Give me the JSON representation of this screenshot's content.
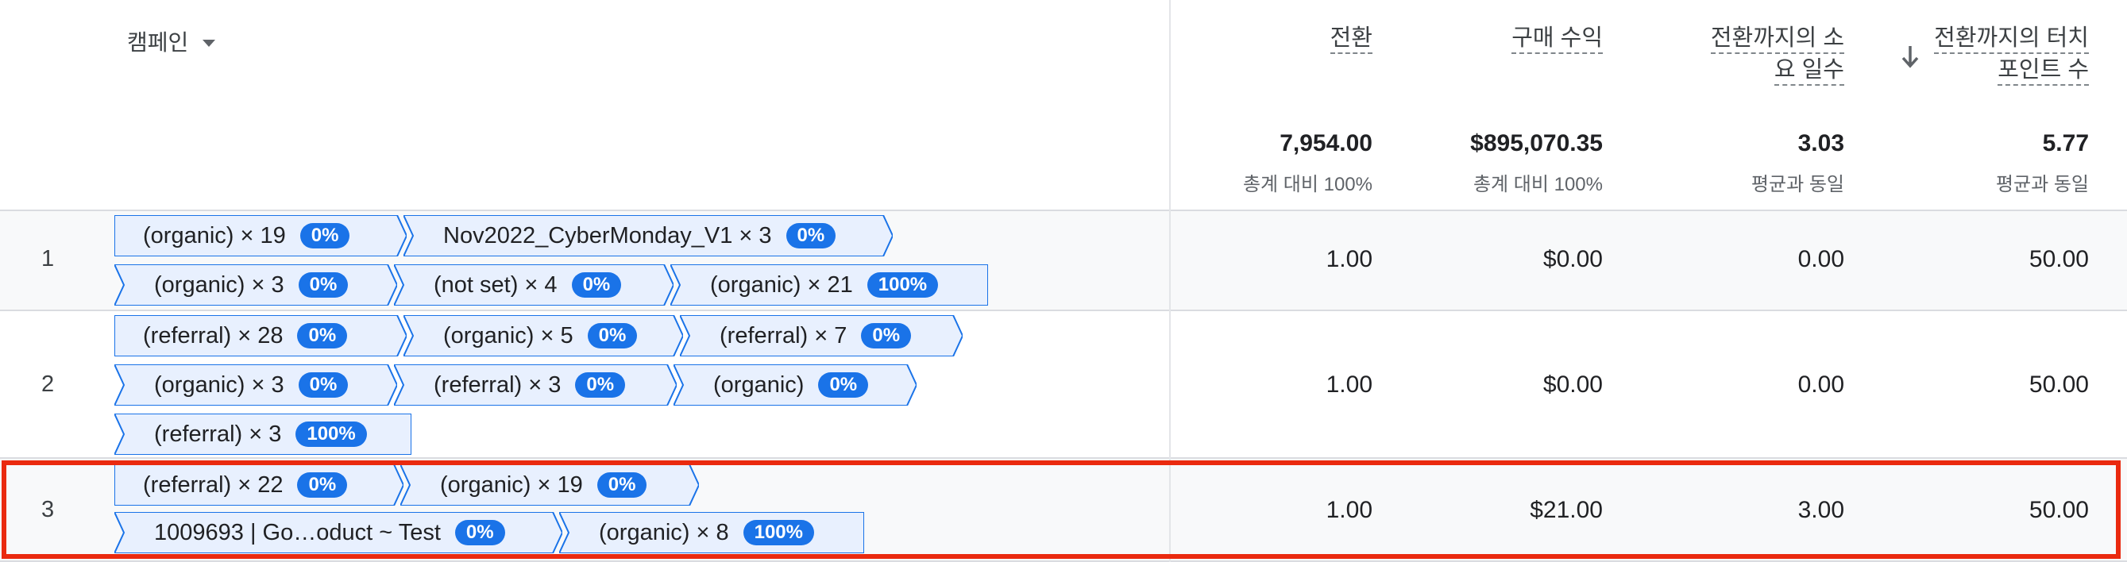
{
  "header": {
    "campaign_label": "캠페인",
    "columns": [
      {
        "line1": "전환",
        "line2": ""
      },
      {
        "line1": "구매 수익",
        "line2": ""
      },
      {
        "line1": "전환까지의 소",
        "line2": "요 일수"
      },
      {
        "line1": "전환까지의 터치",
        "line2": "포인트 수"
      }
    ],
    "totals": [
      {
        "value": "7,954.00",
        "sub": "총계 대비 100%"
      },
      {
        "value": "$895,070.35",
        "sub": "총계 대비 100%"
      },
      {
        "value": "3.03",
        "sub": "평균과 동일"
      },
      {
        "value": "5.77",
        "sub": "평균과 동일"
      }
    ]
  },
  "rows": [
    {
      "num": "1",
      "paths": [
        {
          "label": "(organic) × 19",
          "pct": "0%"
        },
        {
          "label": "Nov2022_CyberMonday_V1 × 3",
          "pct": "0%"
        },
        {
          "label": "(organic) × 3",
          "pct": "0%"
        },
        {
          "label": "(not set) × 4",
          "pct": "0%"
        },
        {
          "label": "(organic) × 21",
          "pct": "100%"
        }
      ],
      "values": [
        "1.00",
        "$0.00",
        "0.00",
        "50.00"
      ]
    },
    {
      "num": "2",
      "paths": [
        {
          "label": "(referral) × 28",
          "pct": "0%"
        },
        {
          "label": "(organic) × 5",
          "pct": "0%"
        },
        {
          "label": "(referral) × 7",
          "pct": "0%"
        },
        {
          "label": "(organic) × 3",
          "pct": "0%"
        },
        {
          "label": "(referral) × 3",
          "pct": "0%"
        },
        {
          "label": "(organic)",
          "pct": "0%"
        },
        {
          "label": "(referral) × 3",
          "pct": "100%"
        }
      ],
      "values": [
        "1.00",
        "$0.00",
        "0.00",
        "50.00"
      ]
    },
    {
      "num": "3",
      "paths": [
        {
          "label": "(referral) × 22",
          "pct": "0%"
        },
        {
          "label": "(organic) × 19",
          "pct": "0%"
        },
        {
          "label": "1009693 | Go…oduct ~ Test",
          "pct": "0%"
        },
        {
          "label": "(organic) × 8",
          "pct": "100%"
        }
      ],
      "values": [
        "1.00",
        "$21.00",
        "3.00",
        "50.00"
      ]
    }
  ],
  "colors": {
    "chip_fill": "#e8f0fe",
    "chip_border": "#1a73e8",
    "pct_badge": "#1a73e8",
    "highlight": "#ea2a0f"
  }
}
